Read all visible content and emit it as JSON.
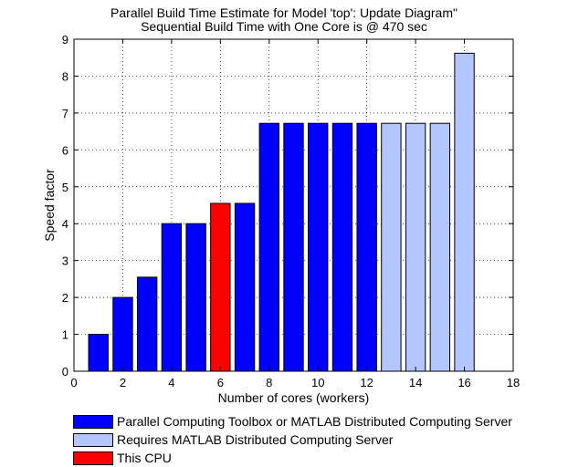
{
  "chart_data": {
    "type": "bar",
    "title": "Parallel Build Time Estimate for Model 'top': Update Diagram\"",
    "subtitle": "Sequential Build Time with One Core is @ 470 sec",
    "xlabel": "Number of cores (workers)",
    "ylabel": "Speed factor",
    "xlim": [
      0,
      18
    ],
    "ylim": [
      0,
      9
    ],
    "xticks": [
      0,
      2,
      4,
      6,
      8,
      10,
      12,
      14,
      16,
      18
    ],
    "yticks": [
      0,
      1,
      2,
      3,
      4,
      5,
      6,
      7,
      8,
      9
    ],
    "grid": true,
    "x": [
      1,
      2,
      3,
      4,
      5,
      6,
      7,
      8,
      9,
      10,
      11,
      12,
      13,
      14,
      15,
      16
    ],
    "values": [
      1.0,
      2.0,
      2.55,
      4.0,
      4.0,
      4.55,
      4.55,
      6.72,
      6.72,
      6.72,
      6.72,
      6.72,
      6.72,
      6.72,
      6.72,
      8.62
    ],
    "bar_group": [
      "pct",
      "pct",
      "pct",
      "pct",
      "pct",
      "cpu",
      "pct",
      "pct",
      "pct",
      "pct",
      "pct",
      "pct",
      "mdcs",
      "mdcs",
      "mdcs",
      "mdcs"
    ],
    "legend": [
      {
        "key": "pct",
        "label": "Parallel Computing Toolbox or MATLAB Distributed Computing Server",
        "color": "#0000ff"
      },
      {
        "key": "mdcs",
        "label": "Requires MATLAB Distributed Computing Server",
        "color": "#b3c6ff"
      },
      {
        "key": "cpu",
        "label": "This CPU",
        "color": "#ff0000"
      }
    ],
    "legend_position": "bottom"
  }
}
